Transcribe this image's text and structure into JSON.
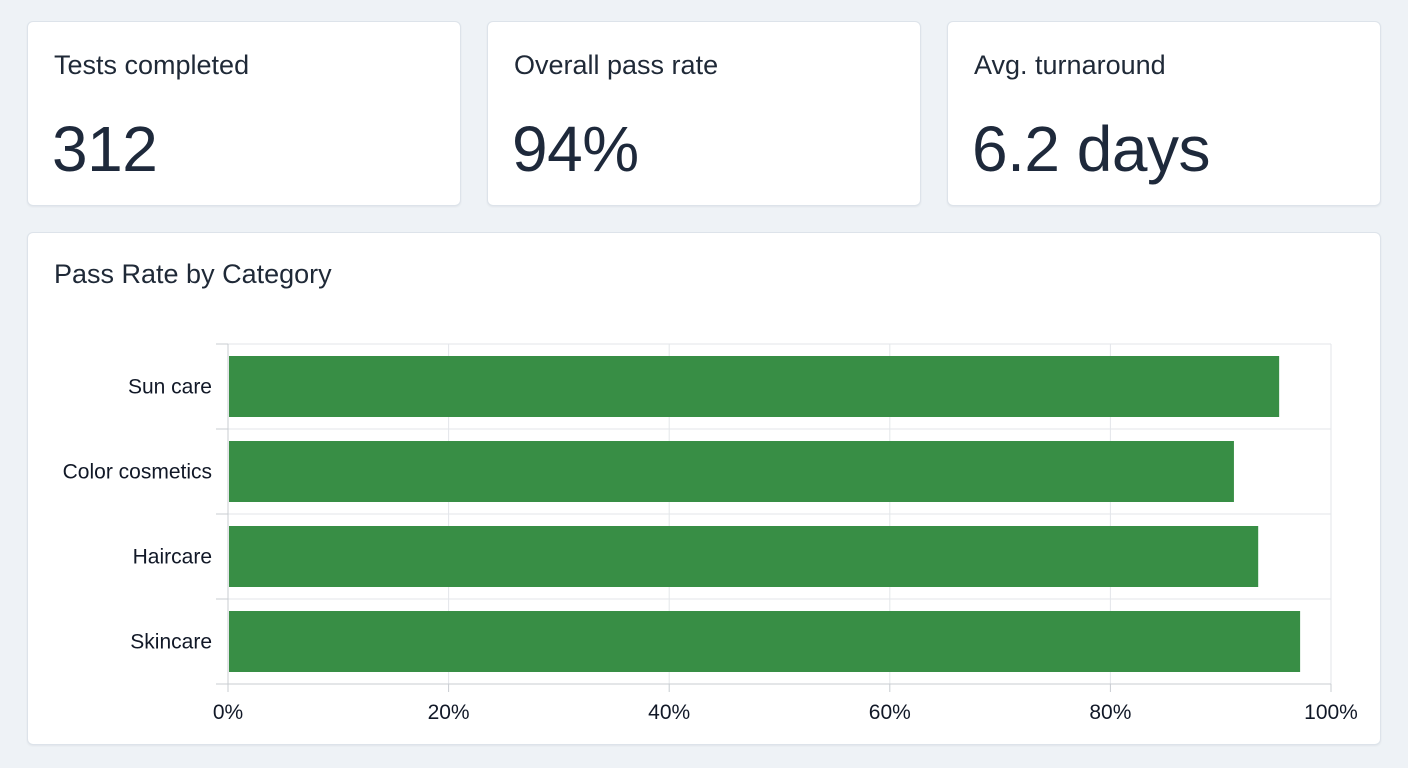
{
  "kpis": [
    {
      "label": "Tests completed",
      "value": "312"
    },
    {
      "label": "Overall pass rate",
      "value": "94%"
    },
    {
      "label": "Avg. turnaround",
      "value": "6.2 days"
    }
  ],
  "colors": {
    "bar": "#388e45",
    "grid": "#e3e6ea",
    "axis": "#c8ccd1"
  },
  "chart_data": {
    "type": "bar",
    "orientation": "horizontal",
    "title": "Pass Rate by Category",
    "categories": [
      "Sun care",
      "Color cosmetics",
      "Haircare",
      "Skincare"
    ],
    "values": [
      95.3,
      91.2,
      93.4,
      97.2
    ],
    "xlim": [
      0,
      100
    ],
    "x_ticks": [
      0,
      20,
      40,
      60,
      80,
      100
    ],
    "x_tick_labels": [
      "0%",
      "20%",
      "40%",
      "60%",
      "80%",
      "100%"
    ],
    "grid": true,
    "legend": "none"
  }
}
